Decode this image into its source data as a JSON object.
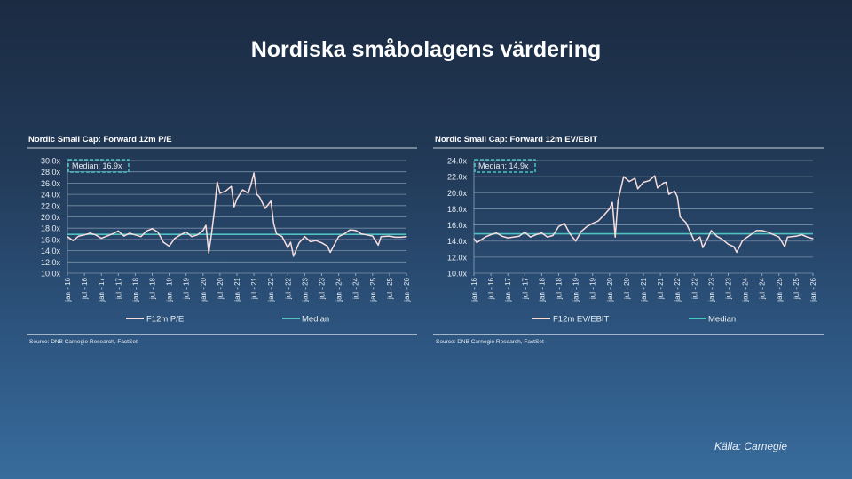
{
  "slide": {
    "title": "Nordiska småbolagens värdering",
    "source_note": "Källa: Carnegie"
  },
  "colors": {
    "series": "#f7dede",
    "median": "#4fc1c1",
    "grid": "#8ea3b8",
    "axis_text": "#e6ecf2"
  },
  "chart_data": [
    {
      "type": "line",
      "title": "Nordic Small Cap: Forward 12m P/E",
      "ylim": [
        10,
        30
      ],
      "yticks": [
        "10.0x",
        "12.0x",
        "14.0x",
        "16.0x",
        "18.0x",
        "20.0x",
        "22.0x",
        "24.0x",
        "26.0x",
        "28.0x",
        "30.0x"
      ],
      "xlim": [
        "2016-01",
        "2026-01"
      ],
      "xticks": [
        "jan - 16",
        "jul - 16",
        "jan - 17",
        "jul - 17",
        "jan - 18",
        "jul - 18",
        "jan - 19",
        "jul - 19",
        "jan - 20",
        "jul - 20",
        "jan - 21",
        "jul - 21",
        "jan - 22",
        "jul - 22",
        "jan - 23",
        "jul - 23",
        "jan - 24",
        "jul - 24",
        "jan - 25",
        "jul - 25",
        "jan - 26"
      ],
      "grid": true,
      "legend": "bottom",
      "median": 16.9,
      "median_label": "Median: 16.9x",
      "series": [
        {
          "name": "F12m P/E",
          "x": [
            "2016-01",
            "2016-03",
            "2016-05",
            "2016-07",
            "2016-09",
            "2016-11",
            "2017-01",
            "2017-03",
            "2017-05",
            "2017-07",
            "2017-09",
            "2017-11",
            "2018-01",
            "2018-03",
            "2018-05",
            "2018-07",
            "2018-09",
            "2018-11",
            "2019-01",
            "2019-03",
            "2019-05",
            "2019-07",
            "2019-09",
            "2019-11",
            "2020-01",
            "2020-02",
            "2020-03",
            "2020-04",
            "2020-05",
            "2020-06",
            "2020-07",
            "2020-09",
            "2020-11",
            "2020-12",
            "2021-01",
            "2021-03",
            "2021-05",
            "2021-06",
            "2021-07",
            "2021-08",
            "2021-09",
            "2021-11",
            "2022-01",
            "2022-02",
            "2022-03",
            "2022-05",
            "2022-07",
            "2022-08",
            "2022-09",
            "2022-11",
            "2023-01",
            "2023-03",
            "2023-05",
            "2023-07",
            "2023-09",
            "2023-10",
            "2024-01",
            "2024-03",
            "2024-05",
            "2024-07",
            "2024-09",
            "2024-11",
            "2025-01",
            "2025-03",
            "2025-04",
            "2025-07",
            "2025-09",
            "2025-11",
            "2026-01"
          ],
          "values": [
            16.5,
            15.8,
            16.6,
            16.8,
            17.1,
            16.8,
            16.2,
            16.6,
            17.0,
            17.5,
            16.6,
            17.1,
            16.8,
            16.5,
            17.5,
            17.9,
            17.3,
            15.5,
            14.8,
            16.2,
            16.8,
            17.3,
            16.5,
            16.8,
            17.6,
            18.5,
            13.6,
            17.0,
            21.0,
            26.2,
            24.2,
            24.6,
            25.4,
            21.8,
            23.2,
            24.8,
            24.2,
            25.8,
            27.8,
            24.0,
            23.5,
            21.5,
            22.8,
            18.8,
            17.0,
            16.5,
            14.5,
            15.5,
            13.0,
            15.4,
            16.5,
            15.6,
            15.8,
            15.4,
            14.8,
            13.7,
            16.5,
            17.0,
            17.7,
            17.6,
            17.0,
            16.8,
            16.6,
            15.0,
            16.5,
            16.6,
            16.4,
            16.4,
            16.5
          ]
        },
        {
          "name": "Median"
        }
      ],
      "source": "Source: DNB Carnegie Research, FactSet"
    },
    {
      "type": "line",
      "title": "Nordic Small Cap: Forward 12m EV/EBIT",
      "ylim": [
        10,
        24
      ],
      "yticks": [
        "10.0x",
        "12.0x",
        "14.0x",
        "16.0x",
        "18.0x",
        "20.0x",
        "22.0x",
        "24.0x"
      ],
      "xlim": [
        "2016-01",
        "2026-01"
      ],
      "xticks": [
        "jan - 16",
        "jul - 16",
        "jan - 17",
        "jul - 17",
        "jan - 18",
        "jul - 18",
        "jan - 19",
        "jul - 19",
        "jan - 20",
        "jul - 20",
        "jan - 21",
        "jul - 21",
        "jan - 22",
        "jul - 22",
        "jan - 23",
        "jul - 23",
        "jan - 24",
        "jul - 24",
        "jan - 25",
        "jul - 25",
        "jan - 26"
      ],
      "grid": true,
      "legend": "bottom",
      "median": 14.9,
      "median_label": "Median: 14.9x",
      "series": [
        {
          "name": "F12m EV/EBIT",
          "x": [
            "2016-01",
            "2016-02",
            "2016-05",
            "2016-07",
            "2016-09",
            "2016-11",
            "2017-01",
            "2017-05",
            "2017-07",
            "2017-09",
            "2017-11",
            "2018-01",
            "2018-03",
            "2018-05",
            "2018-07",
            "2018-09",
            "2018-11",
            "2019-01",
            "2019-03",
            "2019-05",
            "2019-07",
            "2019-09",
            "2019-11",
            "2020-01",
            "2020-02",
            "2020-03",
            "2020-04",
            "2020-06",
            "2020-08",
            "2020-10",
            "2020-11",
            "2021-01",
            "2021-03",
            "2021-05",
            "2021-06",
            "2021-08",
            "2021-09",
            "2021-10",
            "2021-12",
            "2022-01",
            "2022-02",
            "2022-04",
            "2022-06",
            "2022-07",
            "2022-09",
            "2022-10",
            "2022-12",
            "2023-01",
            "2023-03",
            "2023-05",
            "2023-07",
            "2023-09",
            "2023-10",
            "2023-12",
            "2024-01",
            "2024-03",
            "2024-05",
            "2024-07",
            "2024-09",
            "2024-11",
            "2025-01",
            "2025-03",
            "2025-04",
            "2025-07",
            "2025-09",
            "2025-11",
            "2026-01"
          ],
          "values": [
            14.3,
            13.8,
            14.5,
            14.8,
            15.0,
            14.6,
            14.4,
            14.6,
            15.1,
            14.5,
            14.8,
            15.0,
            14.5,
            14.7,
            15.8,
            16.2,
            14.9,
            14.0,
            15.2,
            15.8,
            16.2,
            16.5,
            17.2,
            18.0,
            18.8,
            14.5,
            19.0,
            22.0,
            21.4,
            21.8,
            20.5,
            21.3,
            21.5,
            22.1,
            20.6,
            21.2,
            21.3,
            19.8,
            20.2,
            19.5,
            17.0,
            16.3,
            14.8,
            14.0,
            14.5,
            13.2,
            14.5,
            15.3,
            14.6,
            14.2,
            13.6,
            13.3,
            12.6,
            14.0,
            14.3,
            14.8,
            15.3,
            15.3,
            15.1,
            14.8,
            14.5,
            13.3,
            14.5,
            14.6,
            14.8,
            14.5,
            14.3
          ]
        },
        {
          "name": "Median"
        }
      ],
      "source": "Source: DNB Carnegie Research, FactSet"
    }
  ]
}
